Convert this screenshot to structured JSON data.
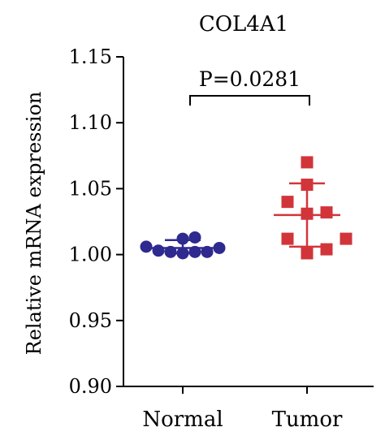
{
  "chart_data": {
    "type": "scatter",
    "title": "COL4A1",
    "ylabel": "Relative mRNA expression",
    "xlabel": "",
    "ylim": [
      0.9,
      1.15
    ],
    "yticks": [
      "0.90",
      "0.95",
      "1.00",
      "1.05",
      "1.10",
      "1.15"
    ],
    "categories": [
      "Normal",
      "Tumor"
    ],
    "grid": false,
    "annotation": "P=0.0281",
    "series": [
      {
        "category": "Normal",
        "color": "#2e2a8f",
        "marker": "circle",
        "values": [
          1.012,
          1.013,
          1.006,
          1.005,
          1.003,
          1.002,
          1.002,
          1.002,
          1.001
        ],
        "mean": 1.005,
        "sd_upper": 1.011,
        "sd_lower": 1.001
      },
      {
        "category": "Tumor",
        "color": "#d1353a",
        "marker": "square",
        "values": [
          1.07,
          1.053,
          1.04,
          1.032,
          1.031,
          1.012,
          1.012,
          1.004,
          1.001
        ],
        "mean": 1.03,
        "sd_upper": 1.054,
        "sd_lower": 1.006
      }
    ]
  }
}
